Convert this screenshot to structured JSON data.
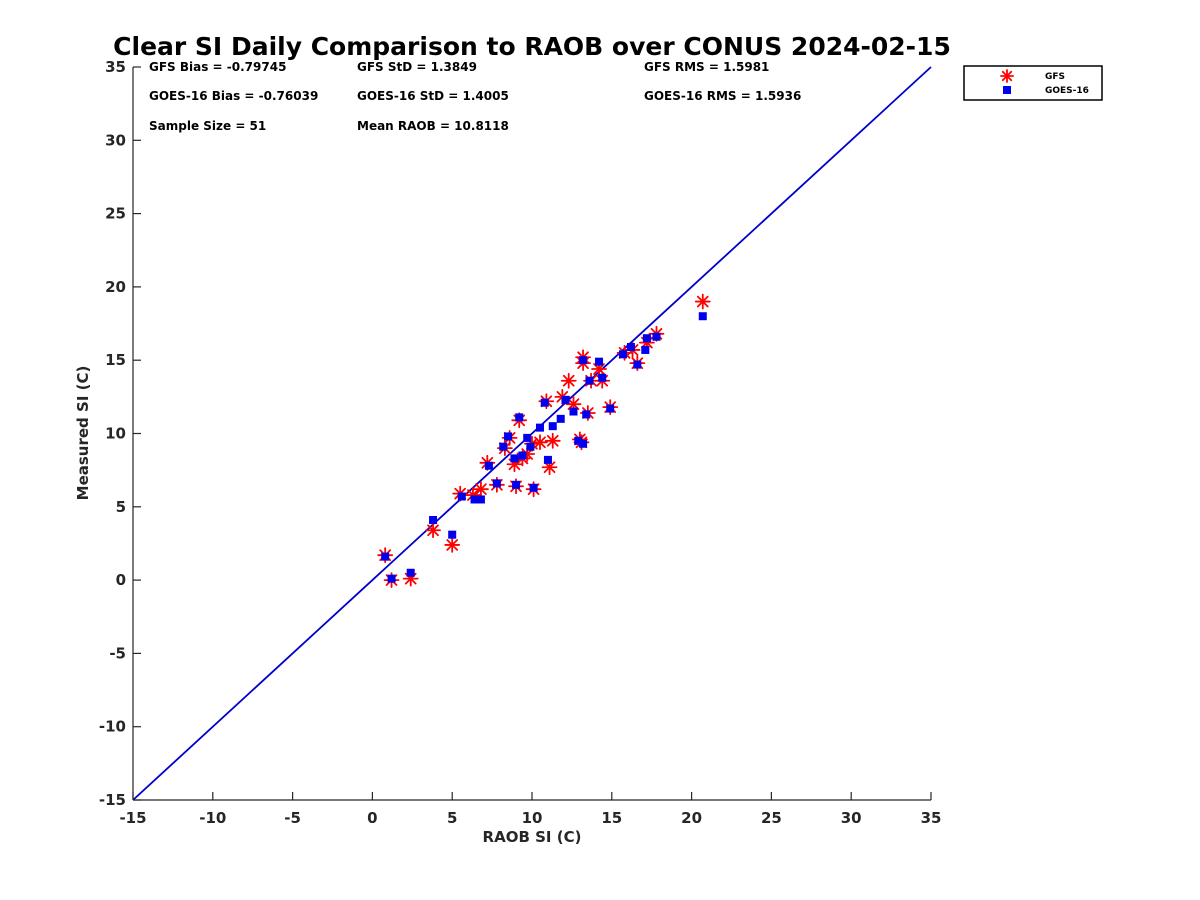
{
  "chart_data": {
    "type": "scatter",
    "title": "Clear SI Daily Comparison to RAOB over CONUS 2024-02-15",
    "xlabel": "RAOB SI (C)",
    "ylabel": "Measured SI (C)",
    "xlim": [
      -15,
      35
    ],
    "ylim": [
      -15,
      35
    ],
    "xticks": [
      -15,
      -10,
      -5,
      0,
      5,
      10,
      15,
      20,
      25,
      30,
      35
    ],
    "yticks": [
      -15,
      -10,
      -5,
      0,
      5,
      10,
      15,
      20,
      25,
      30,
      35
    ],
    "grid": false,
    "legend_position": "outside-top-right",
    "reference_line": {
      "from": [
        -15,
        -15
      ],
      "to": [
        35,
        35
      ],
      "color": "#0000cc"
    },
    "stats": [
      {
        "id": "gfs-bias",
        "text": "GFS Bias = -0.79745"
      },
      {
        "id": "gfs-std",
        "text": "GFS StD = 1.3849"
      },
      {
        "id": "gfs-rms",
        "text": "GFS RMS = 1.5981"
      },
      {
        "id": "goes-bias",
        "text": "GOES-16 Bias = -0.76039"
      },
      {
        "id": "goes-std",
        "text": "GOES-16 StD = 1.4005"
      },
      {
        "id": "goes-rms",
        "text": "GOES-16 RMS = 1.5936"
      },
      {
        "id": "sample-size",
        "text": "Sample Size = 51"
      },
      {
        "id": "mean-raob",
        "text": "Mean RAOB = 10.8118"
      }
    ],
    "series": [
      {
        "name": "GFS",
        "marker": "asterisk",
        "color": "#ff0000",
        "points": [
          [
            0.8,
            1.7
          ],
          [
            1.2,
            0.0
          ],
          [
            2.4,
            0.1
          ],
          [
            3.8,
            3.4
          ],
          [
            5.0,
            2.4
          ],
          [
            5.5,
            5.9
          ],
          [
            6.3,
            5.8
          ],
          [
            6.8,
            6.2
          ],
          [
            7.2,
            8.0
          ],
          [
            7.8,
            6.5
          ],
          [
            8.3,
            9.0
          ],
          [
            8.6,
            9.7
          ],
          [
            8.9,
            7.9
          ],
          [
            9.0,
            6.4
          ],
          [
            9.2,
            10.9
          ],
          [
            9.4,
            8.3
          ],
          [
            9.7,
            8.6
          ],
          [
            10.0,
            9.3
          ],
          [
            10.1,
            6.2
          ],
          [
            10.5,
            9.4
          ],
          [
            10.9,
            12.2
          ],
          [
            11.1,
            7.7
          ],
          [
            11.3,
            9.5
          ],
          [
            11.9,
            12.5
          ],
          [
            12.3,
            13.6
          ],
          [
            12.6,
            12.0
          ],
          [
            13.0,
            9.6
          ],
          [
            13.1,
            9.4
          ],
          [
            13.2,
            15.2
          ],
          [
            13.2,
            14.8
          ],
          [
            13.5,
            11.4
          ],
          [
            13.7,
            13.6
          ],
          [
            14.2,
            14.4
          ],
          [
            14.4,
            13.6
          ],
          [
            14.9,
            11.8
          ],
          [
            15.8,
            15.5
          ],
          [
            16.3,
            15.7
          ],
          [
            16.6,
            14.8
          ],
          [
            17.2,
            16.2
          ],
          [
            17.8,
            16.8
          ],
          [
            20.7,
            19.0
          ]
        ]
      },
      {
        "name": "GOES-16",
        "marker": "square",
        "color": "#0000ee",
        "points": [
          [
            0.8,
            1.6
          ],
          [
            1.2,
            0.1
          ],
          [
            2.4,
            0.5
          ],
          [
            3.8,
            4.1
          ],
          [
            5.0,
            3.1
          ],
          [
            5.6,
            5.7
          ],
          [
            6.4,
            5.5
          ],
          [
            6.8,
            5.5
          ],
          [
            7.3,
            7.8
          ],
          [
            7.8,
            6.6
          ],
          [
            8.2,
            9.1
          ],
          [
            8.5,
            9.8
          ],
          [
            8.9,
            8.3
          ],
          [
            9.0,
            6.5
          ],
          [
            9.2,
            11.1
          ],
          [
            9.4,
            8.5
          ],
          [
            9.7,
            9.7
          ],
          [
            9.9,
            9.1
          ],
          [
            10.1,
            6.3
          ],
          [
            10.5,
            10.4
          ],
          [
            10.8,
            12.1
          ],
          [
            11.0,
            8.2
          ],
          [
            11.3,
            10.5
          ],
          [
            11.8,
            11.0
          ],
          [
            12.1,
            12.3
          ],
          [
            12.6,
            11.5
          ],
          [
            12.9,
            9.5
          ],
          [
            13.2,
            9.3
          ],
          [
            13.2,
            15.0
          ],
          [
            13.4,
            11.3
          ],
          [
            13.6,
            13.6
          ],
          [
            14.2,
            14.9
          ],
          [
            14.4,
            13.8
          ],
          [
            14.9,
            11.7
          ],
          [
            15.7,
            15.4
          ],
          [
            16.2,
            15.9
          ],
          [
            16.6,
            14.7
          ],
          [
            17.1,
            15.7
          ],
          [
            17.2,
            16.5
          ],
          [
            17.8,
            16.6
          ],
          [
            20.7,
            18.0
          ]
        ]
      }
    ]
  }
}
